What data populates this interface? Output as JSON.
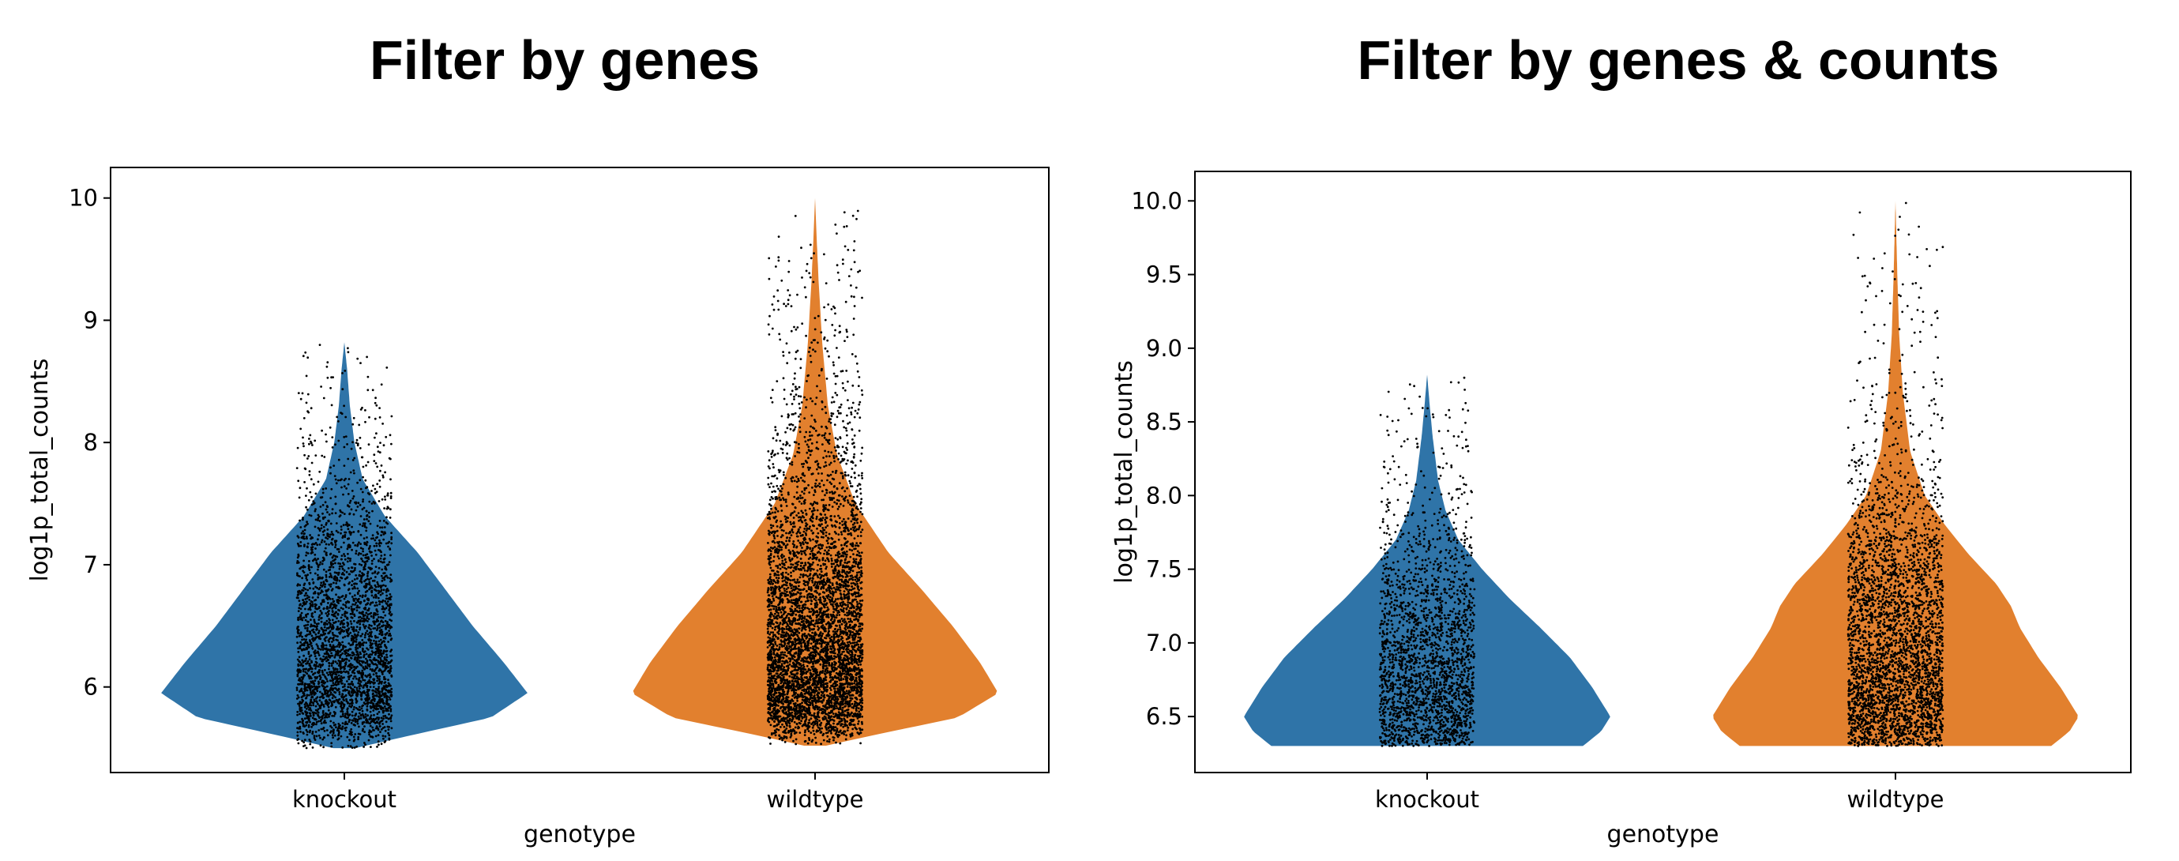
{
  "panels": [
    {
      "title": "Filter by genes"
    },
    {
      "title": "Filter by genes & counts"
    }
  ],
  "colors": {
    "knockout": "#2f74a8",
    "wildtype": "#e2802e",
    "points": "#000000"
  },
  "chart_data": [
    {
      "type": "violin",
      "title": "Filter by genes",
      "xlabel": "genotype",
      "ylabel": "log1p_total_counts",
      "categories": [
        "knockout",
        "wildtype"
      ],
      "ylim": [
        5.3,
        10.25
      ],
      "yticks": [
        6,
        7,
        8,
        9,
        10
      ],
      "ytick_labels": [
        "6",
        "7",
        "8",
        "9",
        "10"
      ],
      "grid": false,
      "series": [
        {
          "category": "knockout",
          "min": 5.5,
          "max": 8.82,
          "mode": 5.95,
          "median": 6.2,
          "density_profile": [
            [
              5.5,
              0.06
            ],
            [
              5.6,
              0.35
            ],
            [
              5.75,
              0.8
            ],
            [
              5.95,
              1.0
            ],
            [
              6.2,
              0.87
            ],
            [
              6.5,
              0.7
            ],
            [
              6.8,
              0.55
            ],
            [
              7.1,
              0.4
            ],
            [
              7.4,
              0.22
            ],
            [
              7.7,
              0.1
            ],
            [
              8.0,
              0.055
            ],
            [
              8.3,
              0.03
            ],
            [
              8.6,
              0.015
            ],
            [
              8.82,
              0.0
            ]
          ]
        },
        {
          "category": "wildtype",
          "min": 5.52,
          "max": 10.0,
          "mode": 5.95,
          "median": 6.3,
          "density_profile": [
            [
              5.52,
              0.06
            ],
            [
              5.6,
              0.3
            ],
            [
              5.75,
              0.78
            ],
            [
              5.95,
              1.0
            ],
            [
              6.2,
              0.9
            ],
            [
              6.5,
              0.75
            ],
            [
              6.8,
              0.58
            ],
            [
              7.1,
              0.4
            ],
            [
              7.5,
              0.22
            ],
            [
              7.9,
              0.12
            ],
            [
              8.3,
              0.07
            ],
            [
              8.8,
              0.04
            ],
            [
              9.3,
              0.02
            ],
            [
              9.7,
              0.008
            ],
            [
              10.0,
              0.0
            ]
          ]
        }
      ]
    },
    {
      "type": "violin",
      "title": "Filter by genes & counts",
      "xlabel": "genotype",
      "ylabel": "log1p_total_counts",
      "categories": [
        "knockout",
        "wildtype"
      ],
      "ylim": [
        6.12,
        10.2
      ],
      "yticks": [
        6.5,
        7.0,
        7.5,
        8.0,
        8.5,
        9.0,
        9.5,
        10.0
      ],
      "ytick_labels": [
        "6.5",
        "7.0",
        "7.5",
        "8.0",
        "8.5",
        "9.0",
        "9.5",
        "10.0"
      ],
      "grid": false,
      "series": [
        {
          "category": "knockout",
          "min": 6.3,
          "max": 8.82,
          "mode": 6.5,
          "median": 6.85,
          "density_profile": [
            [
              6.3,
              0.85
            ],
            [
              6.4,
              0.95
            ],
            [
              6.5,
              1.0
            ],
            [
              6.7,
              0.9
            ],
            [
              6.9,
              0.78
            ],
            [
              7.1,
              0.62
            ],
            [
              7.3,
              0.45
            ],
            [
              7.5,
              0.3
            ],
            [
              7.7,
              0.17
            ],
            [
              7.9,
              0.1
            ],
            [
              8.1,
              0.06
            ],
            [
              8.4,
              0.03
            ],
            [
              8.6,
              0.015
            ],
            [
              8.82,
              0.0
            ]
          ]
        },
        {
          "category": "wildtype",
          "min": 6.3,
          "max": 10.0,
          "mode": 6.5,
          "median": 7.0,
          "density_profile": [
            [
              6.3,
              0.85
            ],
            [
              6.4,
              0.95
            ],
            [
              6.5,
              1.0
            ],
            [
              6.7,
              0.9
            ],
            [
              6.9,
              0.78
            ],
            [
              7.1,
              0.68
            ],
            [
              7.25,
              0.63
            ],
            [
              7.4,
              0.55
            ],
            [
              7.6,
              0.4
            ],
            [
              7.8,
              0.27
            ],
            [
              8.0,
              0.16
            ],
            [
              8.3,
              0.08
            ],
            [
              8.7,
              0.04
            ],
            [
              9.1,
              0.02
            ],
            [
              9.5,
              0.01
            ],
            [
              10.0,
              0.0
            ]
          ]
        }
      ]
    }
  ]
}
